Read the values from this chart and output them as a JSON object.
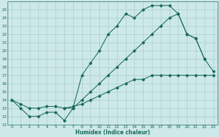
{
  "title": "",
  "xlabel": "Humidex (Indice chaleur)",
  "bg_color": "#cce8e8",
  "grid_color": "#aacccc",
  "line_color": "#1a6b5a",
  "xlim": [
    -0.5,
    23.5
  ],
  "ylim": [
    11,
    26
  ],
  "yticks": [
    11,
    12,
    13,
    14,
    15,
    16,
    17,
    18,
    19,
    20,
    21,
    22,
    23,
    24,
    25
  ],
  "xticks": [
    0,
    1,
    2,
    3,
    4,
    5,
    6,
    7,
    8,
    9,
    10,
    11,
    12,
    13,
    14,
    15,
    16,
    17,
    18,
    19,
    20,
    21,
    22,
    23
  ],
  "line1_x": [
    0,
    1,
    2,
    3,
    4,
    5,
    6,
    7,
    8,
    9,
    10,
    11,
    12,
    13,
    14,
    15,
    16,
    17,
    18,
    19,
    20,
    21,
    22,
    23
  ],
  "line1_y": [
    14,
    13,
    12,
    12,
    12.5,
    12.5,
    11.5,
    13,
    17,
    18.5,
    20,
    22,
    23,
    24.5,
    24,
    25,
    25.5,
    25.5,
    25.5,
    24.5,
    22,
    21.5,
    19,
    17.5
  ],
  "line2_x": [
    0,
    1,
    2,
    3,
    4,
    5,
    6,
    7,
    8,
    9,
    10,
    11,
    12,
    13,
    14,
    15,
    16,
    17,
    18,
    19,
    20,
    21,
    22,
    23
  ],
  "line2_y": [
    14,
    13.5,
    13,
    13,
    13.2,
    13.2,
    13,
    13.2,
    13.5,
    14,
    14.5,
    15,
    15.5,
    16,
    16.5,
    16.5,
    17,
    17,
    17,
    17,
    17,
    17,
    17,
    17
  ],
  "line3_x": [
    6,
    7,
    8,
    9,
    10,
    11,
    12,
    13,
    14,
    15,
    16,
    17,
    18,
    19,
    20,
    21,
    22
  ],
  "line3_y": [
    13,
    13,
    14,
    15,
    16,
    17,
    18,
    19,
    20,
    21,
    22,
    23,
    24,
    24.5,
    22,
    21.5,
    19
  ]
}
